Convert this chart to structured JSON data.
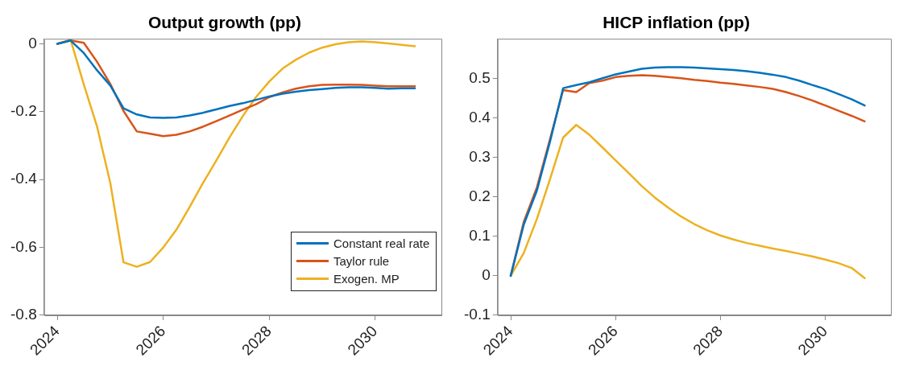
{
  "chart_data": [
    {
      "type": "line",
      "title": "Output growth (pp)",
      "x": [
        2024,
        2024.25,
        2024.5,
        2024.75,
        2025,
        2025.25,
        2025.5,
        2025.75,
        2026,
        2026.25,
        2026.5,
        2026.75,
        2027,
        2027.25,
        2027.5,
        2027.75,
        2028,
        2028.25,
        2028.5,
        2028.75,
        2029,
        2029.25,
        2029.5,
        2029.75,
        2030,
        2030.25,
        2030.5,
        2030.75
      ],
      "xlim": [
        2023.75,
        2031.25
      ],
      "xticks": [
        2024,
        2026,
        2028,
        2030
      ],
      "ylim": [
        -0.8,
        0.015
      ],
      "yticks": [
        -0.8,
        -0.6,
        -0.4,
        -0.2,
        0
      ],
      "grid": false,
      "legend": "bottom right",
      "series": [
        {
          "name": "Constant real rate",
          "color": "#0072bd",
          "values": [
            0,
            0.01,
            -0.027,
            -0.078,
            -0.123,
            -0.19,
            -0.208,
            -0.217,
            -0.218,
            -0.217,
            -0.211,
            -0.203,
            -0.193,
            -0.183,
            -0.175,
            -0.165,
            -0.155,
            -0.147,
            -0.141,
            -0.136,
            -0.133,
            -0.13,
            -0.128,
            -0.128,
            -0.13,
            -0.132,
            -0.131,
            -0.131
          ]
        },
        {
          "name": "Taylor rule",
          "color": "#d95319",
          "values": [
            0,
            0.01,
            0.003,
            -0.053,
            -0.118,
            -0.198,
            -0.258,
            -0.265,
            -0.272,
            -0.268,
            -0.258,
            -0.244,
            -0.228,
            -0.211,
            -0.194,
            -0.178,
            -0.157,
            -0.143,
            -0.132,
            -0.125,
            -0.121,
            -0.12,
            -0.12,
            -0.121,
            -0.123,
            -0.125,
            -0.125,
            -0.125
          ]
        },
        {
          "name": "Exogen. MP",
          "color": "#edb120",
          "values": [
            0,
            0.012,
            -0.12,
            -0.244,
            -0.41,
            -0.644,
            -0.657,
            -0.643,
            -0.6,
            -0.547,
            -0.48,
            -0.41,
            -0.344,
            -0.276,
            -0.213,
            -0.157,
            -0.111,
            -0.073,
            -0.047,
            -0.026,
            -0.011,
            -0.001,
            0.005,
            0.007,
            0.005,
            0.001,
            -0.003,
            -0.007
          ]
        }
      ]
    },
    {
      "type": "line",
      "title": "HICP inflation (pp)",
      "x": [
        2024,
        2024.25,
        2024.5,
        2024.75,
        2025,
        2025.25,
        2025.5,
        2025.75,
        2026,
        2026.25,
        2026.5,
        2026.75,
        2027,
        2027.25,
        2027.5,
        2027.75,
        2028,
        2028.25,
        2028.5,
        2028.75,
        2029,
        2029.25,
        2029.5,
        2029.75,
        2030,
        2030.25,
        2030.5,
        2030.75
      ],
      "xlim": [
        2023.75,
        2031.25
      ],
      "xticks": [
        2024,
        2026,
        2028,
        2030
      ],
      "ylim": [
        -0.1,
        0.6
      ],
      "yticks": [
        -0.1,
        0,
        0.1,
        0.2,
        0.3,
        0.4,
        0.5
      ],
      "grid": false,
      "series": [
        {
          "color": "#0072bd",
          "values": [
            0,
            0.13,
            0.216,
            0.34,
            0.475,
            0.483,
            0.49,
            0.5,
            0.51,
            0.517,
            0.524,
            0.527,
            0.528,
            0.528,
            0.527,
            0.525,
            0.523,
            0.521,
            0.518,
            0.514,
            0.509,
            0.503,
            0.494,
            0.483,
            0.473,
            0.46,
            0.447,
            0.431
          ]
        },
        {
          "color": "#d95319",
          "values": [
            0,
            0.137,
            0.224,
            0.346,
            0.47,
            0.465,
            0.488,
            0.494,
            0.503,
            0.506,
            0.508,
            0.506,
            0.503,
            0.5,
            0.496,
            0.493,
            0.489,
            0.486,
            0.482,
            0.478,
            0.473,
            0.465,
            0.455,
            0.444,
            0.431,
            0.418,
            0.405,
            0.391
          ]
        },
        {
          "color": "#edb120",
          "values": [
            0,
            0.058,
            0.144,
            0.245,
            0.35,
            0.382,
            0.357,
            0.325,
            0.292,
            0.26,
            0.227,
            0.198,
            0.173,
            0.15,
            0.131,
            0.115,
            0.102,
            0.092,
            0.083,
            0.076,
            0.069,
            0.063,
            0.056,
            0.049,
            0.041,
            0.032,
            0.02,
            -0.006
          ]
        }
      ]
    }
  ]
}
